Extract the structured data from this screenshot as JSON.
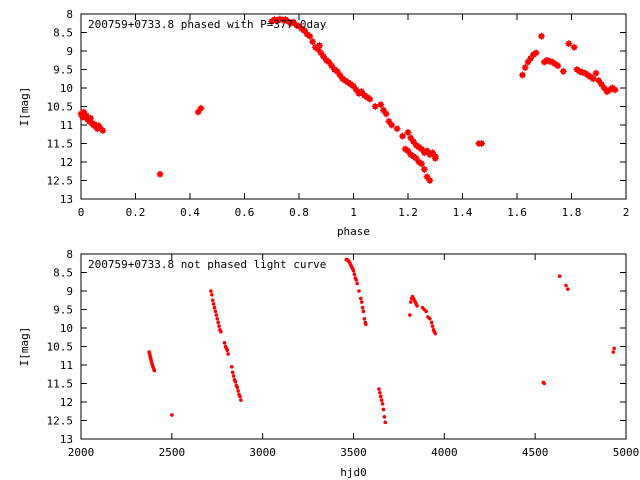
{
  "chart_data": [
    {
      "type": "scatter",
      "title": "200759+0733.8 phased with P=377.0day",
      "xlabel": "phase",
      "ylabel": "I[mag]",
      "xlim": [
        0,
        2
      ],
      "ylim": [
        13,
        8
      ],
      "y_inverted": true,
      "x_ticks": [
        "0",
        "0.2",
        "0.4",
        "0.6",
        "0.8",
        "1",
        "1.2",
        "1.4",
        "1.6",
        "1.8",
        "2"
      ],
      "y_ticks": [
        "8",
        "8.5",
        "9",
        "9.5",
        "10",
        "10.5",
        "11",
        "11.5",
        "12",
        "12.5",
        "13"
      ],
      "marker_color": "#ff0000",
      "marker": "filled-square-cross",
      "grid": false,
      "series": [
        {
          "points": [
            [
              0.0,
              10.7
            ],
            [
              0.005,
              10.78
            ],
            [
              0.01,
              10.65
            ],
            [
              0.015,
              10.8
            ],
            [
              0.02,
              10.75
            ],
            [
              0.025,
              10.85
            ],
            [
              0.03,
              10.9
            ],
            [
              0.035,
              10.82
            ],
            [
              0.04,
              10.95
            ],
            [
              0.045,
              11.0
            ],
            [
              0.05,
              10.98
            ],
            [
              0.055,
              11.05
            ],
            [
              0.06,
              11.1
            ],
            [
              0.065,
              11.02
            ],
            [
              0.07,
              11.08
            ],
            [
              0.08,
              11.15
            ],
            [
              0.29,
              12.33
            ],
            [
              0.43,
              10.65
            ],
            [
              0.44,
              10.55
            ],
            [
              0.7,
              8.2
            ],
            [
              0.71,
              8.15
            ],
            [
              0.72,
              8.18
            ],
            [
              0.73,
              8.14
            ],
            [
              0.74,
              8.16
            ],
            [
              0.75,
              8.15
            ],
            [
              0.76,
              8.2
            ],
            [
              0.77,
              8.25
            ],
            [
              0.78,
              8.22
            ],
            [
              0.79,
              8.3
            ],
            [
              0.8,
              8.33
            ],
            [
              0.81,
              8.4
            ],
            [
              0.82,
              8.45
            ],
            [
              0.83,
              8.55
            ],
            [
              0.84,
              8.6
            ],
            [
              0.85,
              8.75
            ],
            [
              0.86,
              8.9
            ],
            [
              0.87,
              8.95
            ],
            [
              0.875,
              8.85
            ],
            [
              0.88,
              9.05
            ],
            [
              0.89,
              9.15
            ],
            [
              0.9,
              9.25
            ],
            [
              0.91,
              9.3
            ],
            [
              0.92,
              9.4
            ],
            [
              0.93,
              9.5
            ],
            [
              0.94,
              9.55
            ],
            [
              0.95,
              9.65
            ],
            [
              0.96,
              9.75
            ],
            [
              0.97,
              9.8
            ],
            [
              0.98,
              9.85
            ],
            [
              0.99,
              9.9
            ],
            [
              1.0,
              9.95
            ],
            [
              1.01,
              10.05
            ],
            [
              1.02,
              10.15
            ],
            [
              1.03,
              10.1
            ],
            [
              1.04,
              10.2
            ],
            [
              1.05,
              10.25
            ],
            [
              1.06,
              10.3
            ],
            [
              1.08,
              10.5
            ],
            [
              1.1,
              10.45
            ],
            [
              1.11,
              10.6
            ],
            [
              1.12,
              10.7
            ],
            [
              1.13,
              10.9
            ],
            [
              1.14,
              11.0
            ],
            [
              1.16,
              11.1
            ],
            [
              1.18,
              11.3
            ],
            [
              1.19,
              11.65
            ],
            [
              1.2,
              11.7
            ],
            [
              1.2,
              11.2
            ],
            [
              1.21,
              11.8
            ],
            [
              1.21,
              11.35
            ],
            [
              1.22,
              11.85
            ],
            [
              1.22,
              11.45
            ],
            [
              1.23,
              11.9
            ],
            [
              1.23,
              11.55
            ],
            [
              1.24,
              12.0
            ],
            [
              1.24,
              11.6
            ],
            [
              1.25,
              12.05
            ],
            [
              1.25,
              11.65
            ],
            [
              1.26,
              12.2
            ],
            [
              1.26,
              11.75
            ],
            [
              1.27,
              12.4
            ],
            [
              1.27,
              11.7
            ],
            [
              1.28,
              12.5
            ],
            [
              1.28,
              11.8
            ],
            [
              1.29,
              11.75
            ],
            [
              1.3,
              11.9
            ],
            [
              1.3,
              11.85
            ],
            [
              1.46,
              11.5
            ],
            [
              1.47,
              11.5
            ],
            [
              1.62,
              9.65
            ],
            [
              1.63,
              9.45
            ],
            [
              1.64,
              9.3
            ],
            [
              1.65,
              9.2
            ],
            [
              1.66,
              9.1
            ],
            [
              1.67,
              9.05
            ],
            [
              1.69,
              8.6
            ],
            [
              1.7,
              9.3
            ],
            [
              1.71,
              9.25
            ],
            [
              1.72,
              9.28
            ],
            [
              1.73,
              9.3
            ],
            [
              1.74,
              9.35
            ],
            [
              1.75,
              9.4
            ],
            [
              1.77,
              9.55
            ],
            [
              1.79,
              8.8
            ],
            [
              1.81,
              8.9
            ],
            [
              1.82,
              9.5
            ],
            [
              1.83,
              9.55
            ],
            [
              1.84,
              9.58
            ],
            [
              1.85,
              9.6
            ],
            [
              1.86,
              9.65
            ],
            [
              1.87,
              9.7
            ],
            [
              1.88,
              9.75
            ],
            [
              1.89,
              9.6
            ],
            [
              1.9,
              9.8
            ],
            [
              1.91,
              9.9
            ],
            [
              1.92,
              10.0
            ],
            [
              1.93,
              10.1
            ],
            [
              1.94,
              10.05
            ],
            [
              1.95,
              10.0
            ],
            [
              1.96,
              10.05
            ]
          ]
        }
      ]
    },
    {
      "type": "scatter",
      "title": "200759+0733.8 not phased light curve",
      "xlabel": "hjd0",
      "ylabel": "I[mag]",
      "xlim": [
        2000,
        5000
      ],
      "ylim": [
        13,
        8
      ],
      "y_inverted": true,
      "x_ticks": [
        "2000",
        "2500",
        "3000",
        "3500",
        "4000",
        "4500",
        "5000"
      ],
      "y_ticks": [
        "8",
        "8.5",
        "9",
        "9.5",
        "10",
        "10.5",
        "11",
        "11.5",
        "12",
        "12.5",
        "13"
      ],
      "marker_color": "#ff0000",
      "marker": "small-dot",
      "grid": false,
      "series": [
        {
          "points": [
            [
              2375,
              10.65
            ],
            [
              2378,
              10.7
            ],
            [
              2380,
              10.75
            ],
            [
              2382,
              10.8
            ],
            [
              2385,
              10.85
            ],
            [
              2388,
              10.9
            ],
            [
              2390,
              10.95
            ],
            [
              2393,
              11.0
            ],
            [
              2396,
              11.05
            ],
            [
              2400,
              11.1
            ],
            [
              2404,
              11.15
            ],
            [
              2500,
              12.35
            ],
            [
              2715,
              9.0
            ],
            [
              2720,
              9.1
            ],
            [
              2725,
              9.25
            ],
            [
              2730,
              9.35
            ],
            [
              2735,
              9.45
            ],
            [
              2740,
              9.55
            ],
            [
              2745,
              9.65
            ],
            [
              2750,
              9.75
            ],
            [
              2755,
              9.85
            ],
            [
              2760,
              9.95
            ],
            [
              2765,
              10.05
            ],
            [
              2770,
              10.1
            ],
            [
              2790,
              10.4
            ],
            [
              2795,
              10.5
            ],
            [
              2800,
              10.55
            ],
            [
              2805,
              10.6
            ],
            [
              2810,
              10.7
            ],
            [
              2830,
              11.05
            ],
            [
              2835,
              11.2
            ],
            [
              2840,
              11.3
            ],
            [
              2845,
              11.4
            ],
            [
              2850,
              11.45
            ],
            [
              2855,
              11.55
            ],
            [
              2860,
              11.6
            ],
            [
              2865,
              11.7
            ],
            [
              2870,
              11.8
            ],
            [
              2875,
              11.85
            ],
            [
              2880,
              11.95
            ],
            [
              3460,
              8.15
            ],
            [
              3465,
              8.15
            ],
            [
              3470,
              8.18
            ],
            [
              3475,
              8.2
            ],
            [
              3480,
              8.25
            ],
            [
              3485,
              8.3
            ],
            [
              3490,
              8.35
            ],
            [
              3495,
              8.4
            ],
            [
              3500,
              8.45
            ],
            [
              3505,
              8.55
            ],
            [
              3510,
              8.65
            ],
            [
              3515,
              8.7
            ],
            [
              3520,
              8.8
            ],
            [
              3530,
              9.0
            ],
            [
              3540,
              9.2
            ],
            [
              3545,
              9.3
            ],
            [
              3550,
              9.45
            ],
            [
              3555,
              9.55
            ],
            [
              3560,
              9.75
            ],
            [
              3565,
              9.85
            ],
            [
              3568,
              9.9
            ],
            [
              3640,
              11.65
            ],
            [
              3645,
              11.75
            ],
            [
              3650,
              11.85
            ],
            [
              3655,
              11.95
            ],
            [
              3660,
              12.05
            ],
            [
              3665,
              12.2
            ],
            [
              3670,
              12.4
            ],
            [
              3675,
              12.55
            ],
            [
              3810,
              9.65
            ],
            [
              3815,
              9.3
            ],
            [
              3820,
              9.2
            ],
            [
              3825,
              9.15
            ],
            [
              3830,
              9.2
            ],
            [
              3835,
              9.25
            ],
            [
              3840,
              9.3
            ],
            [
              3845,
              9.35
            ],
            [
              3850,
              9.4
            ],
            [
              3880,
              9.45
            ],
            [
              3890,
              9.5
            ],
            [
              3900,
              9.55
            ],
            [
              3910,
              9.7
            ],
            [
              3920,
              9.75
            ],
            [
              3930,
              9.85
            ],
            [
              3935,
              9.95
            ],
            [
              3940,
              10.05
            ],
            [
              3945,
              10.1
            ],
            [
              3950,
              10.15
            ],
            [
              4545,
              11.47
            ],
            [
              4550,
              11.5
            ],
            [
              4635,
              8.6
            ],
            [
              4670,
              8.85
            ],
            [
              4680,
              8.95
            ],
            [
              4930,
              10.65
            ],
            [
              4935,
              10.55
            ]
          ]
        }
      ]
    }
  ]
}
